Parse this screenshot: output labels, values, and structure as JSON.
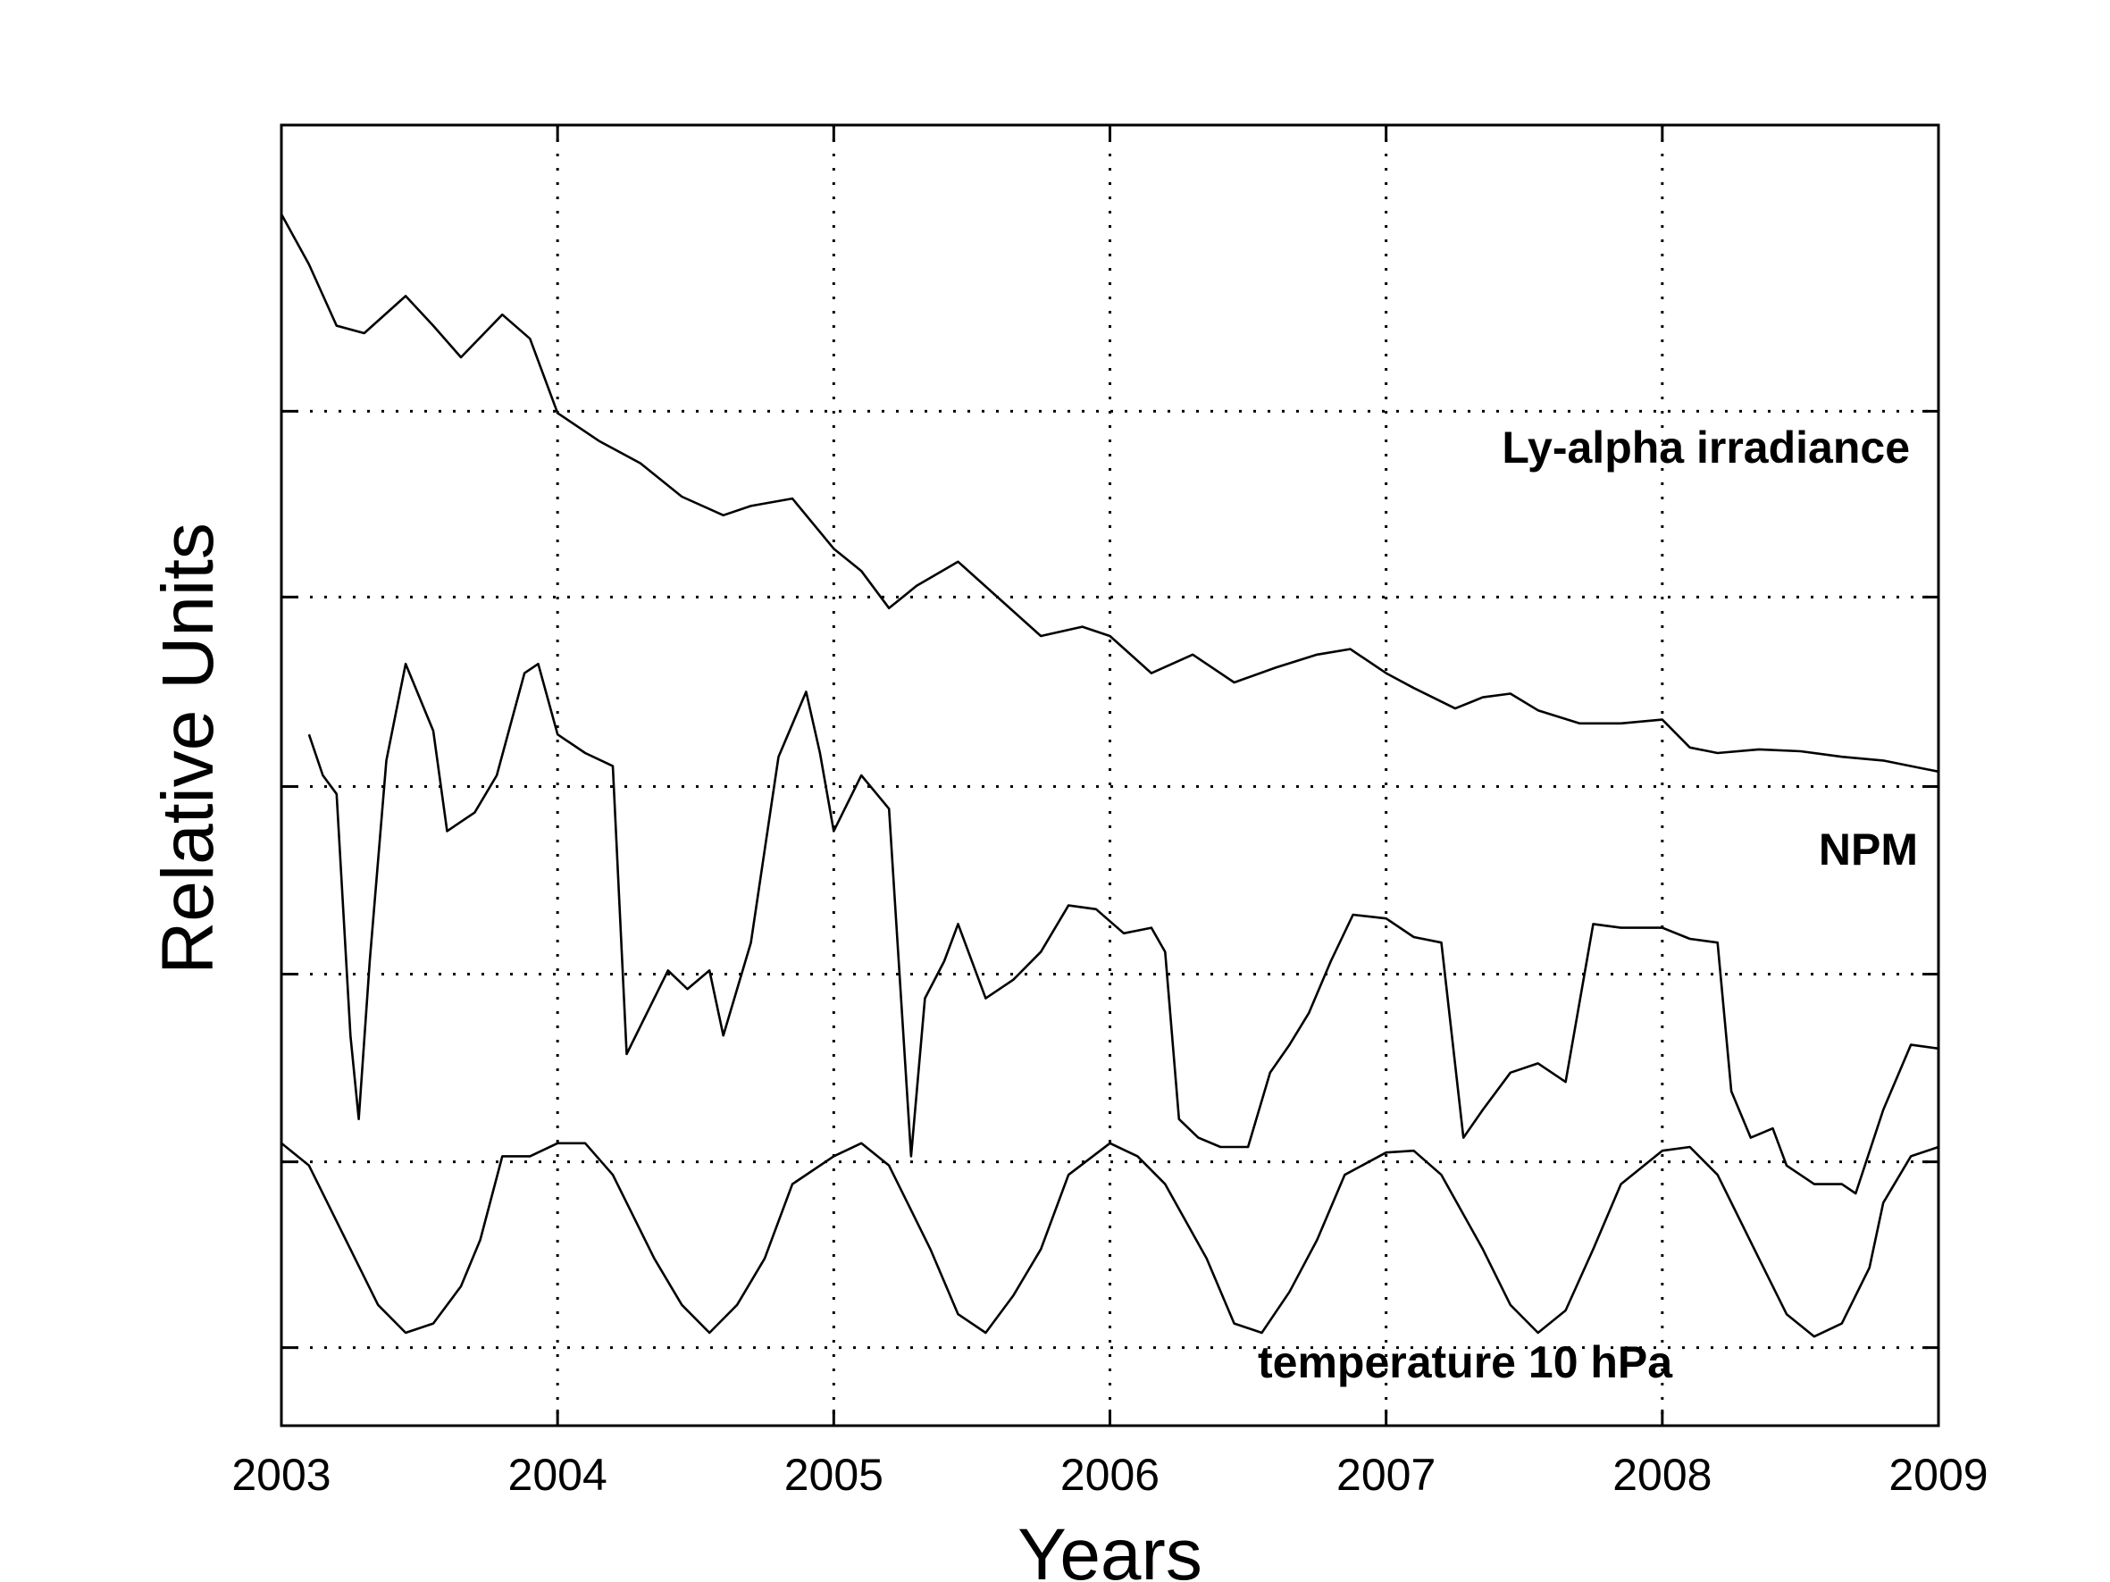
{
  "chart_data": {
    "type": "line",
    "title": "",
    "xlabel": "Years",
    "ylabel": "Relative Units",
    "xlim": [
      2003,
      2009
    ],
    "ylim": [
      0,
      7
    ],
    "xticks": [
      "2003",
      "2004",
      "2005",
      "2006",
      "2007",
      "2008",
      "2009"
    ],
    "yticks_unlabeled": [
      0.42,
      1.42,
      2.43,
      3.44,
      4.46,
      5.46
    ],
    "grid": true,
    "series": [
      {
        "name": "Ly-alpha irradiance",
        "x": [
          2003.0,
          2003.1,
          2003.2,
          2003.3,
          2003.45,
          2003.55,
          2003.65,
          2003.8,
          2003.9,
          2004.0,
          2004.15,
          2004.3,
          2004.45,
          2004.6,
          2004.7,
          2004.85,
          2005.0,
          2005.1,
          2005.2,
          2005.3,
          2005.45,
          2005.6,
          2005.75,
          2005.9,
          2006.0,
          2006.15,
          2006.3,
          2006.45,
          2006.6,
          2006.75,
          2006.87,
          2007.0,
          2007.1,
          2007.25,
          2007.35,
          2007.45,
          2007.55,
          2007.7,
          2007.85,
          2008.0,
          2008.1,
          2008.2,
          2008.35,
          2008.5,
          2008.65,
          2008.8,
          2008.9,
          2009.0
        ],
        "y": [
          6.52,
          6.25,
          5.92,
          5.88,
          6.08,
          5.92,
          5.75,
          5.98,
          5.85,
          5.45,
          5.3,
          5.18,
          5.0,
          4.9,
          4.95,
          4.99,
          4.72,
          4.6,
          4.4,
          4.52,
          4.65,
          4.45,
          4.25,
          4.3,
          4.25,
          4.05,
          4.15,
          4.0,
          4.08,
          4.15,
          4.18,
          4.05,
          3.97,
          3.86,
          3.92,
          3.94,
          3.85,
          3.78,
          3.78,
          3.8,
          3.65,
          3.62,
          3.64,
          3.63,
          3.6,
          3.58,
          3.55,
          3.52
        ]
      },
      {
        "name": "NPM",
        "x": [
          2003.1,
          2003.15,
          2003.2,
          2003.25,
          2003.28,
          2003.32,
          2003.38,
          2003.45,
          2003.55,
          2003.6,
          2003.7,
          2003.78,
          2003.88,
          2003.93,
          2004.0,
          2004.1,
          2004.2,
          2004.25,
          2004.3,
          2004.4,
          2004.47,
          2004.55,
          2004.6,
          2004.7,
          2004.8,
          2004.9,
          2004.95,
          2005.0,
          2005.1,
          2005.2,
          2005.28,
          2005.33,
          2005.4,
          2005.45,
          2005.55,
          2005.65,
          2005.75,
          2005.85,
          2005.95,
          2006.05,
          2006.15,
          2006.2,
          2006.25,
          2006.32,
          2006.4,
          2006.5,
          2006.58,
          2006.65,
          2006.72,
          2006.8,
          2006.88,
          2007.0,
          2007.1,
          2007.2,
          2007.28,
          2007.35,
          2007.45,
          2007.55,
          2007.65,
          2007.75,
          2007.85,
          2008.0,
          2008.1,
          2008.2,
          2008.25,
          2008.32,
          2008.4,
          2008.45,
          2008.55,
          2008.65,
          2008.7,
          2008.8,
          2008.9,
          2009.0
        ],
        "y": [
          3.72,
          3.5,
          3.4,
          2.1,
          1.65,
          2.5,
          3.58,
          4.1,
          3.74,
          3.2,
          3.3,
          3.5,
          4.05,
          4.1,
          3.72,
          3.62,
          3.55,
          2.0,
          2.15,
          2.45,
          2.35,
          2.45,
          2.1,
          2.6,
          3.6,
          3.95,
          3.62,
          3.2,
          3.5,
          3.32,
          1.45,
          2.3,
          2.5,
          2.7,
          2.3,
          2.4,
          2.55,
          2.8,
          2.78,
          2.65,
          2.68,
          2.55,
          1.65,
          1.55,
          1.5,
          1.5,
          1.9,
          2.05,
          2.22,
          2.5,
          2.75,
          2.73,
          2.63,
          2.6,
          1.55,
          1.7,
          1.9,
          1.95,
          1.85,
          2.7,
          2.68,
          2.68,
          2.62,
          2.6,
          1.8,
          1.55,
          1.6,
          1.4,
          1.3,
          1.3,
          1.25,
          1.7,
          2.05,
          2.03
        ]
      },
      {
        "name": "temperature 10 hPa",
        "x": [
          2003.0,
          2003.1,
          2003.2,
          2003.35,
          2003.45,
          2003.55,
          2003.65,
          2003.72,
          2003.8,
          2003.9,
          2004.0,
          2004.1,
          2004.2,
          2004.35,
          2004.45,
          2004.55,
          2004.65,
          2004.75,
          2004.85,
          2005.0,
          2005.1,
          2005.2,
          2005.35,
          2005.45,
          2005.55,
          2005.65,
          2005.75,
          2005.85,
          2006.0,
          2006.1,
          2006.2,
          2006.35,
          2006.45,
          2006.55,
          2006.65,
          2006.75,
          2006.85,
          2007.0,
          2007.1,
          2007.2,
          2007.35,
          2007.45,
          2007.55,
          2007.65,
          2007.75,
          2007.85,
          2008.0,
          2008.1,
          2008.2,
          2008.35,
          2008.45,
          2008.55,
          2008.65,
          2008.75,
          2008.8,
          2008.9,
          2009.0
        ],
        "y": [
          1.52,
          1.4,
          1.1,
          0.65,
          0.5,
          0.55,
          0.75,
          1.0,
          1.45,
          1.45,
          1.52,
          1.52,
          1.35,
          0.9,
          0.65,
          0.5,
          0.65,
          0.9,
          1.3,
          1.45,
          1.52,
          1.4,
          0.95,
          0.6,
          0.5,
          0.7,
          0.95,
          1.35,
          1.52,
          1.45,
          1.3,
          0.9,
          0.55,
          0.5,
          0.72,
          1.0,
          1.35,
          1.47,
          1.48,
          1.35,
          0.95,
          0.65,
          0.5,
          0.62,
          0.95,
          1.3,
          1.48,
          1.5,
          1.35,
          0.9,
          0.6,
          0.48,
          0.55,
          0.85,
          1.2,
          1.45,
          1.5
        ]
      }
    ],
    "annotations": [
      "Ly-alpha irradiance",
      "NPM",
      "temperature 10 hPa"
    ]
  }
}
